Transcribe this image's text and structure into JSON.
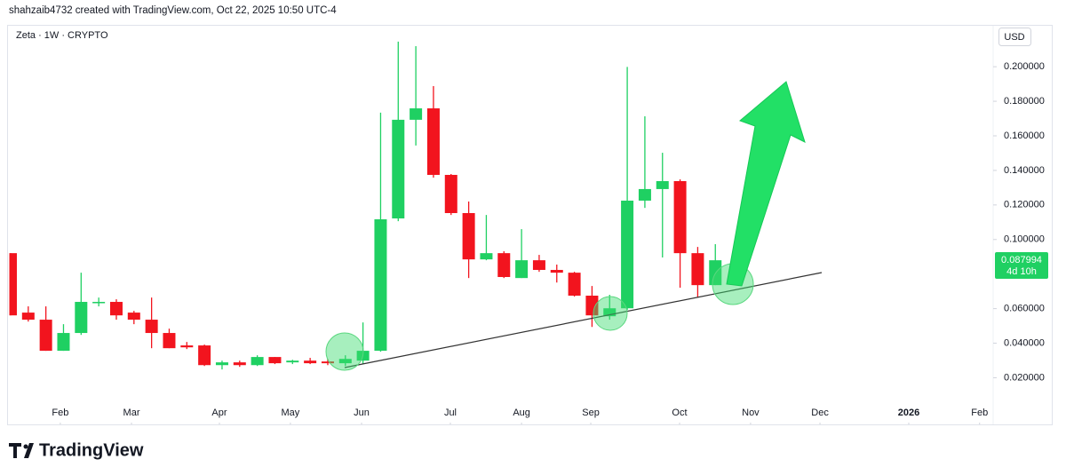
{
  "chart_data": {
    "type": "candlestick",
    "header": "shahzaib4732 created with TradingView.com, Oct 22, 2025 10:50 UTC-4",
    "title": "Zeta · 1W · CRYPTO",
    "currency": "USD",
    "brand": "TradingView",
    "price_label": "0.087994",
    "countdown": "4d 10h",
    "up_color": "#1fd062",
    "down_color": "#f2141e",
    "x": [
      0,
      1,
      2,
      3,
      4,
      5,
      6,
      7,
      8,
      9,
      10,
      11,
      12,
      13,
      14,
      15,
      16,
      17,
      18,
      19,
      20,
      21,
      22,
      23,
      24,
      25,
      26,
      27,
      28,
      29,
      30,
      31,
      32,
      33,
      34,
      35,
      36,
      37,
      38,
      39,
      40
    ],
    "open": [
      0.0921,
      0.0577,
      0.0536,
      0.0356,
      0.0459,
      0.0633,
      0.0639,
      0.0577,
      0.0536,
      0.0459,
      0.0387,
      0.0387,
      0.0273,
      0.0289,
      0.0273,
      0.032,
      0.0289,
      0.0299,
      0.0294,
      0.0284,
      0.0299,
      0.0356,
      0.1122,
      0.1693,
      0.1759,
      0.1374,
      0.1153,
      0.0885,
      0.0921,
      0.0777,
      0.088,
      0.0824,
      0.0808,
      0.0675,
      0.0556,
      0.0602,
      0.1225,
      0.1292,
      0.1338,
      0.0921,
      0.0736
    ],
    "high": [
      0.0921,
      0.0613,
      0.0613,
      0.051,
      0.0808,
      0.0664,
      0.0654,
      0.0587,
      0.0664,
      0.0484,
      0.0407,
      0.0392,
      0.0299,
      0.0299,
      0.033,
      0.032,
      0.0304,
      0.0315,
      0.0309,
      0.033,
      0.052,
      0.1734,
      0.2145,
      0.2119,
      0.1888,
      0.1379,
      0.122,
      0.1142,
      0.0932,
      0.106,
      0.0911,
      0.0855,
      0.0813,
      0.0731,
      0.068,
      0.1999,
      0.1713,
      0.1502,
      0.1348,
      0.0957,
      0.0973
    ],
    "low": [
      0.0561,
      0.0525,
      0.0356,
      0.0356,
      0.0448,
      0.0613,
      0.0536,
      0.051,
      0.0371,
      0.0371,
      0.0366,
      0.0268,
      0.0248,
      0.0263,
      0.0268,
      0.0279,
      0.0279,
      0.0279,
      0.0273,
      0.0268,
      0.0279,
      0.0351,
      0.1106,
      0.1544,
      0.1358,
      0.1142,
      0.0777,
      0.088,
      0.0777,
      0.0777,
      0.0813,
      0.0751,
      0.067,
      0.0494,
      0.0536,
      0.0592,
      0.1183,
      0.0896,
      0.0721,
      0.0664,
      0.0736
    ],
    "close": [
      0.0561,
      0.0536,
      0.0356,
      0.0459,
      0.0639,
      0.0639,
      0.0561,
      0.0536,
      0.0459,
      0.0371,
      0.0376,
      0.0273,
      0.0289,
      0.0273,
      0.032,
      0.0284,
      0.0299,
      0.0284,
      0.0284,
      0.0309,
      0.0356,
      0.1117,
      0.1693,
      0.1759,
      0.1374,
      0.1153,
      0.0885,
      0.0921,
      0.0783,
      0.088,
      0.0824,
      0.0808,
      0.0675,
      0.0561,
      0.0602,
      0.1225,
      0.1292,
      0.1338,
      0.0921,
      0.0736,
      0.087994
    ],
    "xlim": [
      -0.1,
      55.77
    ],
    "ylim": [
      -0.007,
      0.2232
    ],
    "xticks": [
      {
        "value": 2.82,
        "label": "Feb"
      },
      {
        "value": 6.86,
        "label": "Mar"
      },
      {
        "value": 11.85,
        "label": "Apr"
      },
      {
        "value": 15.88,
        "label": "May"
      },
      {
        "value": 19.92,
        "label": "Jun"
      },
      {
        "value": 24.96,
        "label": "Jul"
      },
      {
        "value": 29.0,
        "label": "Aug"
      },
      {
        "value": 32.93,
        "label": "Sep"
      },
      {
        "value": 37.97,
        "label": "Oct"
      },
      {
        "value": 42.0,
        "label": "Nov"
      },
      {
        "value": 45.94,
        "label": "Dec"
      },
      {
        "value": 50.98,
        "label": "2026"
      },
      {
        "value": 55.0,
        "label": "Feb"
      }
    ],
    "yticks": [
      {
        "value": 0.02,
        "label": "0.020000"
      },
      {
        "value": 0.04,
        "label": "0.040000"
      },
      {
        "value": 0.06,
        "label": "0.060000"
      },
      {
        "value": 0.1,
        "label": "0.100000"
      },
      {
        "value": 0.12,
        "label": "0.120000"
      },
      {
        "value": 0.14,
        "label": "0.140000"
      },
      {
        "value": 0.16,
        "label": "0.160000"
      },
      {
        "value": 0.18,
        "label": "0.180000"
      },
      {
        "value": 0.2,
        "label": "0.200000"
      }
    ]
  }
}
